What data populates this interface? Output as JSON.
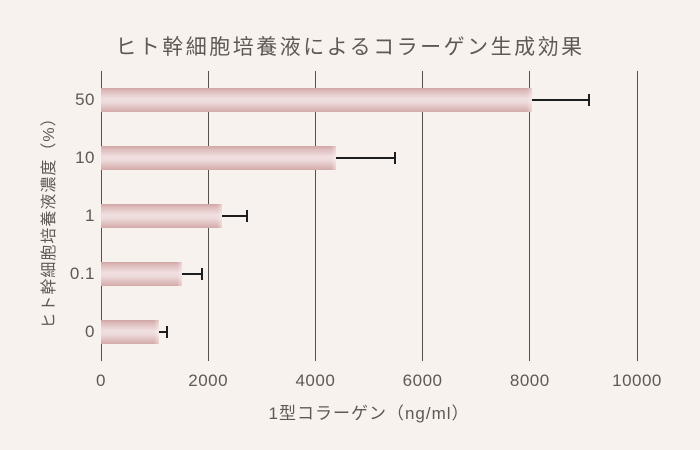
{
  "chart_data": {
    "type": "bar",
    "orientation": "horizontal",
    "title": "ヒト幹細胞培養液によるコラーゲン生成効果",
    "xlabel": "1型コラーゲン（ng/ml）",
    "ylabel": "ヒト幹細胞培養液濃度（%）",
    "categories": [
      "50",
      "10",
      "1",
      "0.1",
      "0"
    ],
    "values": [
      8050,
      4380,
      2250,
      1510,
      1080
    ],
    "errors": [
      1060,
      1100,
      480,
      380,
      150
    ],
    "error_direction": "plus-only",
    "xlim": [
      0,
      10000
    ],
    "xticks": [
      0,
      2000,
      4000,
      6000,
      8000,
      10000
    ],
    "grid": "vertical-gridlines-only",
    "legend": "none",
    "colors": {
      "background": "#f8f2ef",
      "bar_edge": "#d0a5a5",
      "bar_mid": "#f1e0e0",
      "gridline": "#56504b",
      "error_bar": "#1e1e1e",
      "text": "#5f5955"
    }
  }
}
